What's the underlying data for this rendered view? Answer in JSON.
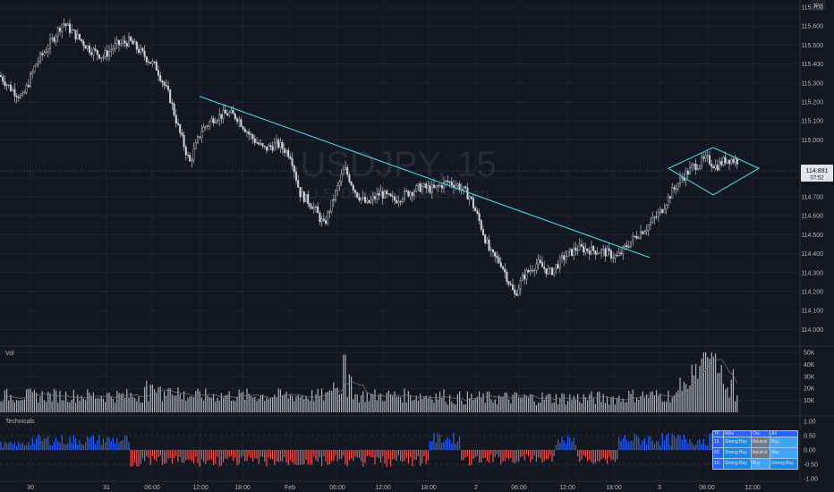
{
  "symbol": {
    "ticker": "USDJPY, 15",
    "name": "U.S. Dollar / Japanese Yen",
    "currency_badge": "JPY",
    "last_price": "114.891",
    "countdown": "07:52"
  },
  "panes": {
    "volume_label": "Vol",
    "technicals_label": "Technicals"
  },
  "colors": {
    "background": "#131722",
    "candle": "#d1d4dc",
    "trendline": "#4dd0e1",
    "price_tag": "#e0e3eb",
    "volume_bar": "#c9cbd1",
    "osc_positive": "#2962ff",
    "osc_negative": "#ef5350"
  },
  "price_axis": {
    "ticks": [
      "115.700",
      "115.600",
      "115.500",
      "115.400",
      "115.300",
      "115.200",
      "115.100",
      "115.000",
      "114.891",
      "114.800",
      "114.700",
      "114.600",
      "114.500",
      "114.400",
      "114.300",
      "114.200",
      "114.100",
      "114.000"
    ]
  },
  "volume_axis": {
    "ticks": [
      "50K",
      "40K",
      "30K",
      "20K",
      "10K"
    ]
  },
  "osc_axis": {
    "ticks": [
      "1.00",
      "0.50",
      "0.00",
      "-0.50",
      "-1.00"
    ]
  },
  "time_axis": {
    "labels": [
      "30",
      "31",
      "06:00",
      "12:00",
      "18:00",
      "Feb",
      "06:00",
      "12:00",
      "18:00",
      "2",
      "06:00",
      "12:00",
      "18:00",
      "3",
      "06:00",
      "12:00"
    ]
  },
  "technicals_table": {
    "headers": [
      "TF",
      "MAs",
      "Osc",
      "All"
    ],
    "rows": [
      {
        "tf": "15",
        "mas": "Strong Buy",
        "osc": "Neutral",
        "all": "Buy"
      },
      {
        "tf": "60",
        "mas": "Strong Buy",
        "osc": "Neutral",
        "all": "Buy"
      },
      {
        "tf": "1D",
        "mas": "Strong Buy",
        "osc": "Buy",
        "all": "Strong Buy"
      }
    ]
  },
  "chart_data": {
    "type": "candlestick",
    "title": "USDJPY, 15",
    "ylim": [
      114.0,
      115.75
    ],
    "price_path": [
      {
        "t": 0,
        "p": 115.34
      },
      {
        "t": 10,
        "p": 115.28
      },
      {
        "t": 25,
        "p": 115.22
      },
      {
        "t": 40,
        "p": 115.4
      },
      {
        "t": 55,
        "p": 115.5
      },
      {
        "t": 70,
        "p": 115.62
      },
      {
        "t": 85,
        "p": 115.55
      },
      {
        "t": 100,
        "p": 115.48
      },
      {
        "t": 115,
        "p": 115.44
      },
      {
        "t": 130,
        "p": 115.5
      },
      {
        "t": 145,
        "p": 115.52
      },
      {
        "t": 160,
        "p": 115.45
      },
      {
        "t": 175,
        "p": 115.38
      },
      {
        "t": 190,
        "p": 115.22
      },
      {
        "t": 200,
        "p": 115.05
      },
      {
        "t": 212,
        "p": 114.88
      },
      {
        "t": 225,
        "p": 115.05
      },
      {
        "t": 240,
        "p": 115.12
      },
      {
        "t": 255,
        "p": 115.14
      },
      {
        "t": 265,
        "p": 115.12
      },
      {
        "t": 280,
        "p": 115.02
      },
      {
        "t": 295,
        "p": 114.95
      },
      {
        "t": 310,
        "p": 114.98
      },
      {
        "t": 325,
        "p": 114.92
      },
      {
        "t": 335,
        "p": 114.72
      },
      {
        "t": 350,
        "p": 114.65
      },
      {
        "t": 362,
        "p": 114.55
      },
      {
        "t": 375,
        "p": 114.72
      },
      {
        "t": 385,
        "p": 114.85
      },
      {
        "t": 398,
        "p": 114.72
      },
      {
        "t": 410,
        "p": 114.66
      },
      {
        "t": 425,
        "p": 114.72
      },
      {
        "t": 440,
        "p": 114.68
      },
      {
        "t": 455,
        "p": 114.72
      },
      {
        "t": 470,
        "p": 114.75
      },
      {
        "t": 485,
        "p": 114.74
      },
      {
        "t": 500,
        "p": 114.78
      },
      {
        "t": 512,
        "p": 114.76
      },
      {
        "t": 525,
        "p": 114.7
      },
      {
        "t": 535,
        "p": 114.58
      },
      {
        "t": 548,
        "p": 114.4
      },
      {
        "t": 560,
        "p": 114.35
      },
      {
        "t": 575,
        "p": 114.18
      },
      {
        "t": 585,
        "p": 114.28
      },
      {
        "t": 600,
        "p": 114.35
      },
      {
        "t": 615,
        "p": 114.3
      },
      {
        "t": 630,
        "p": 114.38
      },
      {
        "t": 645,
        "p": 114.43
      },
      {
        "t": 660,
        "p": 114.42
      },
      {
        "t": 675,
        "p": 114.41
      },
      {
        "t": 690,
        "p": 114.38
      },
      {
        "t": 700,
        "p": 114.44
      },
      {
        "t": 712,
        "p": 114.5
      },
      {
        "t": 725,
        "p": 114.55
      },
      {
        "t": 738,
        "p": 114.62
      },
      {
        "t": 750,
        "p": 114.72
      },
      {
        "t": 762,
        "p": 114.8
      },
      {
        "t": 775,
        "p": 114.86
      },
      {
        "t": 790,
        "p": 114.9
      },
      {
        "t": 800,
        "p": 114.86
      },
      {
        "t": 812,
        "p": 114.9
      },
      {
        "t": 825,
        "p": 114.89
      }
    ],
    "trendline": [
      {
        "t": 223,
        "p": 115.23
      },
      {
        "t": 726,
        "p": 114.38
      }
    ],
    "diamond_pattern": [
      {
        "t": 747,
        "p": 114.85
      },
      {
        "t": 797,
        "p": 114.96
      },
      {
        "t": 848,
        "p": 114.85
      },
      {
        "t": 797,
        "p": 114.71
      }
    ]
  }
}
